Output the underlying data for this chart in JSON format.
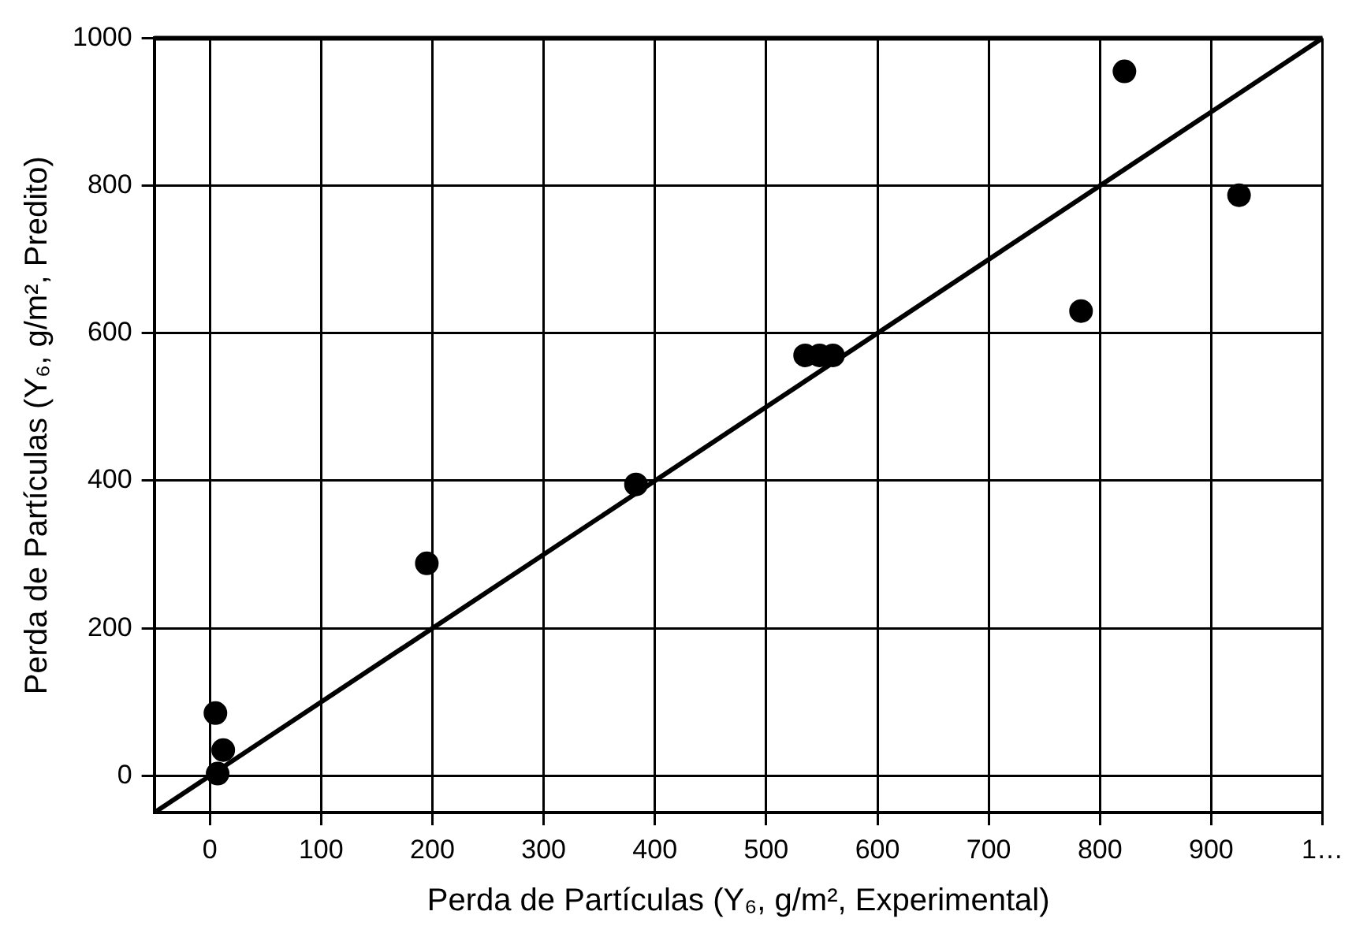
{
  "chart_data": {
    "type": "scatter",
    "xlabel": "Perda de Partículas (Y₆, g/m², Experimental)",
    "ylabel": "Perda de Partículas (Y₆, g/m², Predito)",
    "x": [
      5,
      7,
      12,
      195,
      383,
      535,
      548,
      560,
      783,
      822,
      925
    ],
    "series": [
      {
        "type": "scatter",
        "color": "#000000",
        "marker": "circle",
        "values": [
          85,
          3,
          35,
          288,
          395,
          570,
          570,
          570,
          630,
          955,
          787
        ]
      },
      {
        "type": "line",
        "color": "#000000",
        "marker": "none",
        "line_style": "solid",
        "x": [
          -50,
          1000
        ],
        "values": [
          -50,
          1000
        ]
      }
    ],
    "xlim": [
      -50,
      1000
    ],
    "ylim": [
      -50,
      1000
    ],
    "xticks": [
      0,
      100,
      200,
      300,
      400,
      500,
      600,
      700,
      800,
      900,
      {
        "value": 1000,
        "label": "1…"
      }
    ],
    "yticks": [
      0,
      200,
      400,
      600,
      800,
      1000
    ],
    "grid": true,
    "legend": false
  }
}
